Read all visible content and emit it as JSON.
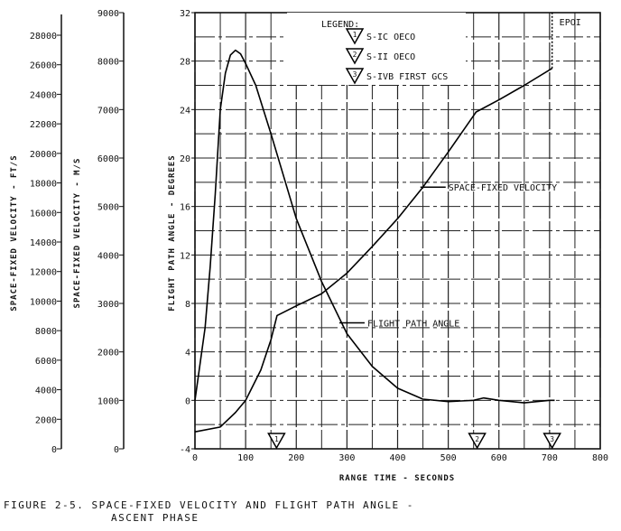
{
  "chart_data": {
    "type": "line",
    "caption_line1": "FIGURE 2-5.  SPACE-FIXED VELOCITY AND FLIGHT PATH ANGLE -",
    "caption_line2": "ASCENT PHASE",
    "xlabel": "RANGE TIME - SECONDS",
    "xlim": [
      0,
      800
    ],
    "xticks": [
      0,
      100,
      200,
      300,
      400,
      500,
      600,
      700,
      800
    ],
    "y_axes": [
      {
        "label": "SPACE-FIXED VELOCITY - FT/S",
        "ticks": [
          0,
          2000,
          4000,
          6000,
          8000,
          10000,
          12000,
          14000,
          16000,
          18000,
          20000,
          22000,
          24000,
          26000,
          28000
        ],
        "tick_labels": [
          "0",
          "2000",
          "4000",
          "6000",
          "8000",
          "10000",
          "12000",
          "14000",
          "16000",
          "18000",
          "20000",
          "22000",
          "24000",
          "26000",
          "28000"
        ],
        "ylim": [
          0,
          29528
        ]
      },
      {
        "label": "SPACE-FIXED VELOCITY - M/S",
        "ticks": [
          0,
          1000,
          2000,
          3000,
          4000,
          5000,
          6000,
          7000,
          8000,
          9000
        ],
        "tick_labels": [
          "0",
          "1000",
          "2000",
          "3000",
          "4000",
          "5000",
          "6000",
          "7000",
          "8000",
          "9000"
        ],
        "ylim": [
          0,
          9000
        ]
      },
      {
        "label": "FLIGHT PATH ANGLE - DEGREES",
        "ticks": [
          -4,
          0,
          4,
          8,
          12,
          16,
          20,
          24,
          28,
          32
        ],
        "tick_labels": [
          "-4",
          "0",
          "4",
          "8",
          "12",
          "16",
          "20",
          "24",
          "28",
          "32"
        ],
        "ylim": [
          -4,
          32
        ]
      }
    ],
    "grid": true,
    "series": [
      {
        "name": "FLIGHT PATH ANGLE",
        "units": "deg",
        "x": [
          0,
          10,
          20,
          30,
          40,
          50,
          60,
          70,
          80,
          90,
          100,
          120,
          150,
          200,
          250,
          300,
          350,
          400,
          450,
          500,
          550,
          570,
          600,
          650,
          700,
          710
        ],
        "y": [
          0,
          3,
          6,
          11,
          17,
          24,
          27,
          28.5,
          28.9,
          28.6,
          27.8,
          26,
          22,
          15,
          9.8,
          5.5,
          2.8,
          1,
          0.1,
          -0.1,
          0,
          0.2,
          0,
          -0.2,
          0,
          0
        ]
      },
      {
        "name": "SPACE-FIXED VELOCITY",
        "units": "m/s",
        "x": [
          0,
          50,
          80,
          100,
          130,
          150,
          162,
          200,
          250,
          300,
          350,
          400,
          450,
          500,
          555,
          600,
          650,
          705
        ],
        "y": [
          350,
          450,
          750,
          1000,
          1625,
          2250,
          2750,
          2950,
          3200,
          3625,
          4175,
          4750,
          5400,
          6125,
          6950,
          7200,
          7500,
          7850
        ],
        "epoi": {
          "label": "EPOI",
          "x": 705,
          "y_from": 7850,
          "y_to": 9000
        }
      }
    ],
    "annotations": [
      {
        "text": "SPACE-FIXED VELOCITY",
        "x": 445,
        "y_deg": 17.6
      },
      {
        "text": "FLIGHT PATH ANGLE",
        "x": 285,
        "y_deg": 6.4
      }
    ],
    "legend": {
      "title": "LEGEND:",
      "placement": "top-center",
      "entries": [
        {
          "marker": "1",
          "label": "S-IC OECO",
          "x": 161
        },
        {
          "marker": "2",
          "label": "S-II OECO",
          "x": 557
        },
        {
          "marker": "3",
          "label": "S-IVB FIRST GCS",
          "x": 705
        }
      ]
    }
  }
}
